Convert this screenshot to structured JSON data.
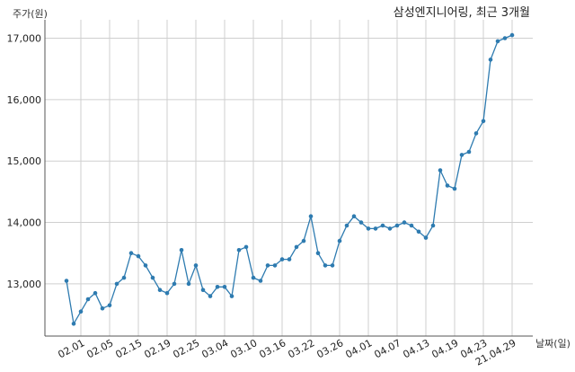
{
  "chart_data": {
    "type": "line",
    "title": "삼성엔지니어링, 최근 3개월",
    "xlabel": "날짜(일)",
    "ylabel": "주가(원)",
    "ylim": [
      12150,
      17300
    ],
    "yticks": [
      13000,
      14000,
      15000,
      16000,
      17000
    ],
    "ytick_labels": [
      "13,000",
      "14,000",
      "15,000",
      "16,000",
      "17,000"
    ],
    "xtick_labels": [
      "02.01",
      "02.05",
      "02.15",
      "02.19",
      "02.25",
      "03.04",
      "03.10",
      "03.16",
      "03.22",
      "03.26",
      "04.01",
      "04.07",
      "04.13",
      "04.19",
      "04.23",
      "21.04.29"
    ],
    "xtick_index": [
      2,
      6,
      10,
      14,
      18,
      22,
      26,
      30,
      34,
      38,
      42,
      46,
      50,
      54,
      58,
      62
    ],
    "grid": true,
    "line_color": "#2e7bb0",
    "series": [
      {
        "name": "",
        "values": [
          13050,
          12350,
          12550,
          12750,
          12850,
          12600,
          12650,
          13000,
          13100,
          13500,
          13450,
          13300,
          13100,
          12900,
          12850,
          13000,
          13550,
          13000,
          13300,
          12900,
          12800,
          12950,
          12950,
          12800,
          13550,
          13600,
          13100,
          13050,
          13300,
          13300,
          13400,
          13400,
          13600,
          13700,
          14100,
          13500,
          13300,
          13300,
          13700,
          13950,
          14100,
          14000,
          13900,
          13900,
          13950,
          13900,
          13950,
          14000,
          13950,
          13850,
          13750,
          13950,
          14850,
          14600,
          14550,
          15100,
          15150,
          15450,
          15650,
          16650,
          16950,
          17000,
          17050
        ]
      }
    ]
  }
}
